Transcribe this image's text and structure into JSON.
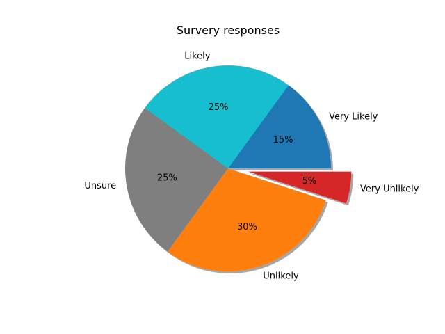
{
  "chart_data": {
    "type": "pie",
    "title": "Survery responses",
    "start_angle_deg": 0,
    "direction": "counterclockwise",
    "shadow": true,
    "slices": [
      {
        "label": "Very Likely",
        "value": 15,
        "pct_label": "15%",
        "color": "#1f77b4",
        "explode": 0
      },
      {
        "label": "Likely",
        "value": 25,
        "pct_label": "25%",
        "color": "#17becf",
        "explode": 0
      },
      {
        "label": "Unsure",
        "value": 25,
        "pct_label": "25%",
        "color": "#7f7f7f",
        "explode": 0
      },
      {
        "label": "Unlikely",
        "value": 30,
        "pct_label": "30%",
        "color": "#ff7f0e",
        "explode": 0
      },
      {
        "label": "Very Unlikely",
        "value": 5,
        "pct_label": "5%",
        "color": "#d62728",
        "explode": 0.2
      }
    ]
  }
}
